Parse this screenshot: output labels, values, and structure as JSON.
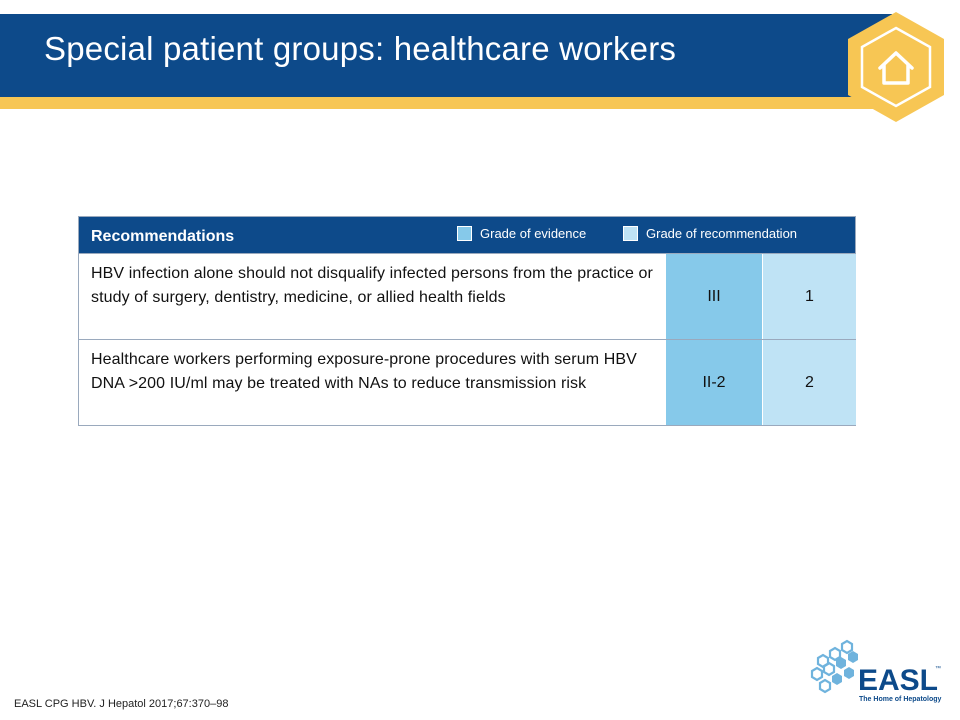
{
  "slide": {
    "title": "Special patient groups: healthcare workers",
    "home_icon": "home-icon"
  },
  "colors": {
    "navy": "#0d4a8a",
    "gold": "#f7c654",
    "evidence": "#86c9ea",
    "recommendation": "#bfe3f5"
  },
  "table": {
    "header": "Recommendations",
    "legend": {
      "evidence": "Grade of evidence",
      "recommendation": "Grade of recommendation"
    },
    "rows": [
      {
        "text": "HBV infection alone should not disqualify infected persons from the practice or study of surgery, dentistry, medicine, or allied health fields",
        "evidence": "III",
        "recommendation": "1"
      },
      {
        "text": "Healthcare workers performing exposure-prone procedures with serum HBV DNA >200 IU/ml may be treated with NAs to reduce transmission risk",
        "evidence": "II-2",
        "recommendation": "2"
      }
    ]
  },
  "footer": {
    "citation": "EASL CPG HBV. J Hepatol 2017;67:370–98",
    "logo_text": "EASL",
    "logo_tm": "™",
    "logo_tagline": "The Home of Hepatology"
  }
}
